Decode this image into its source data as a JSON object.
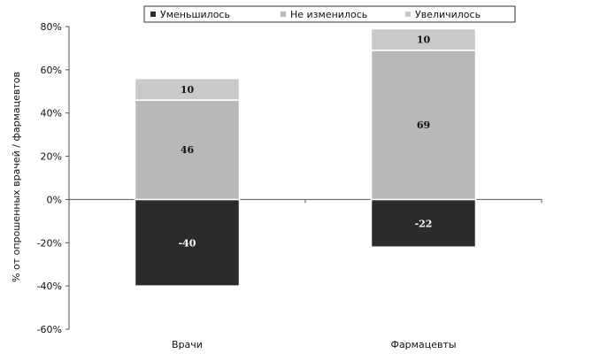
{
  "chart_data": {
    "type": "bar",
    "stacked": true,
    "categories": [
      "Врачи",
      "Фармацевты"
    ],
    "series": [
      {
        "name": "Уменьшилось",
        "values": [
          -40,
          -22
        ],
        "color": "#2b2b2b",
        "label_color": "#ffffff"
      },
      {
        "name": "Не изменилось",
        "values": [
          46,
          69
        ],
        "color": "#b8b8b8",
        "label_color": "#111111"
      },
      {
        "name": "Увеличилось",
        "values": [
          10,
          10
        ],
        "color": "#c9c9c9",
        "label_color": "#111111"
      }
    ],
    "ylabel": "% от опрошенных врачей / фармацевтов",
    "xlabel": "",
    "ylim": [
      -60,
      80
    ],
    "yticks": [
      -60,
      -40,
      -20,
      0,
      20,
      40,
      60,
      80
    ],
    "ytick_labels": [
      "-60%",
      "-40%",
      "-20%",
      "0%",
      "20%",
      "40%",
      "60%",
      "80%"
    ],
    "grid": false,
    "legend": "top"
  }
}
